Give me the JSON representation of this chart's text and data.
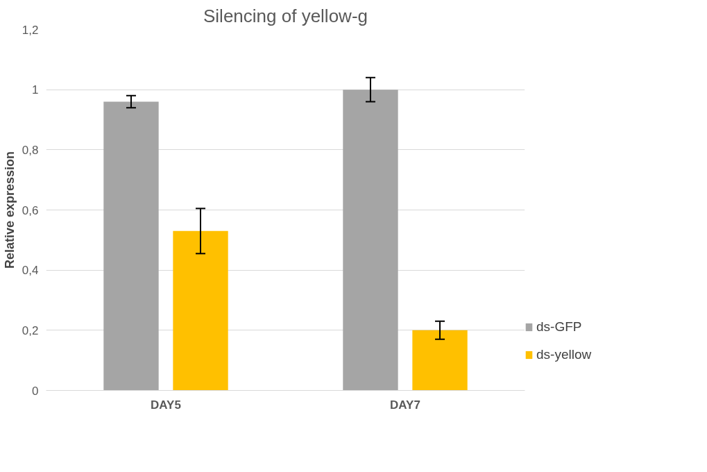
{
  "chart_data": {
    "type": "bar",
    "title": "Silencing of yellow-g",
    "ylabel": "Relative expression",
    "categories": [
      "DAY5",
      "DAY7"
    ],
    "series": [
      {
        "name": "ds-GFP",
        "color": "#a5a5a5",
        "values": [
          0.96,
          1.0
        ],
        "errors": [
          0.02,
          0.04
        ]
      },
      {
        "name": "ds-yellow",
        "color": "#ffc000",
        "values": [
          0.53,
          0.2
        ],
        "errors": [
          0.075,
          0.03
        ]
      }
    ],
    "ylim": [
      0,
      1.2
    ],
    "yticks": [
      0,
      {
        "value": 0.2,
        "label": "0,2"
      },
      {
        "value": 0.4,
        "label": "0,4"
      },
      {
        "value": 0.6,
        "label": "0,6"
      },
      {
        "value": 0.8,
        "label": "0,8"
      },
      1,
      {
        "value": 1.2,
        "label": "1,2"
      }
    ],
    "grid": "y",
    "legend": "right"
  }
}
